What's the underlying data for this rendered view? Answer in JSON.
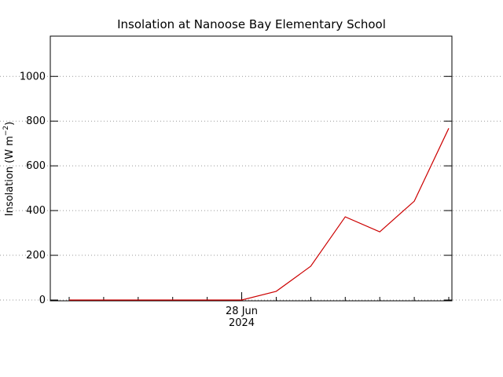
{
  "chart_data": {
    "type": "line",
    "title": "Insolation at Nanoose Bay Elementary School",
    "ylabel": "Insolation (W m",
    "ylabel_sup": "−2",
    "ylabel_end": ")",
    "categories": [
      null,
      null,
      null,
      null,
      null,
      "28 Jun",
      null,
      null,
      null,
      null,
      null,
      null
    ],
    "x_year": "2024",
    "series": [
      {
        "name": "Insolation",
        "color": "#cc0000",
        "values": [
          0,
          0,
          0,
          0,
          0,
          0,
          39,
          151,
          372,
          305,
          442,
          768
        ]
      }
    ],
    "ylim": [
      0,
      1180
    ],
    "yticks": [
      0,
      200,
      400,
      600,
      800,
      1000
    ],
    "grid": true
  }
}
